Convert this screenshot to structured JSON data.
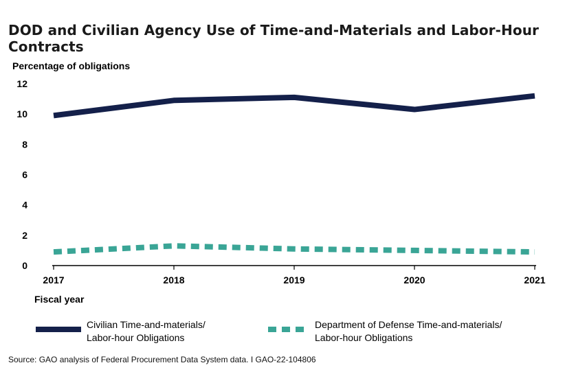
{
  "title": "DOD and Civilian Agency Use of Time-and-Materials and Labor-Hour Contracts",
  "source": "Source: GAO analysis of Federal Procurement Data System data.  I  GAO-22-104806",
  "colors": {
    "civilian": "#14204a",
    "dod": "#3aa596"
  },
  "chart_data": {
    "type": "line",
    "title": "DOD and Civilian Agency Use of Time-and-Materials and Labor-Hour Contracts",
    "xlabel": "Fiscal year",
    "ylabel": "Percentage of obligations",
    "x": [
      "2017",
      "2018",
      "2019",
      "2020",
      "2021"
    ],
    "yticks": [
      "0",
      "2",
      "4",
      "6",
      "8",
      "10",
      "12"
    ],
    "ylim": [
      0,
      12
    ],
    "grid": false,
    "legend_position": "bottom",
    "series": [
      {
        "name": "Civilian Time-and-materials/ Labor-hour Obligations",
        "line1": "Civilian Time-and-materials/",
        "line2": "Labor-hour Obligations",
        "style": "solid",
        "values": [
          9.9,
          10.9,
          11.1,
          10.3,
          11.2
        ]
      },
      {
        "name": "Department of Defense Time-and-materials/ Labor-hour Obligations",
        "line1": "Department of Defense Time-and-materials/",
        "line2": "Labor-hour Obligations",
        "style": "dashed",
        "values": [
          0.9,
          1.3,
          1.1,
          1.0,
          0.9
        ]
      }
    ]
  }
}
